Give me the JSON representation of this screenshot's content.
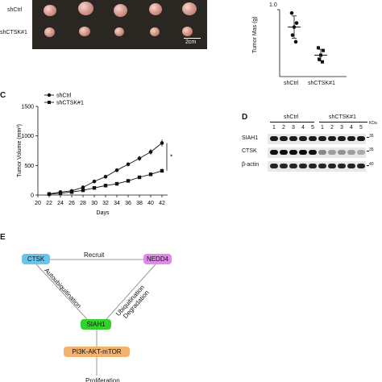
{
  "panelA": {
    "row_labels": [
      "shCtrl",
      "shCTSK#1"
    ],
    "scale_label": "2cm"
  },
  "panelB": {
    "ylabel": "Tumor Mas (g)",
    "ytick_top": "1.0",
    "groups": [
      "shCtrl",
      "shCTSK#1"
    ],
    "chart_data": {
      "type": "scatter",
      "categories": [
        "shCtrl",
        "shCTSK#1"
      ],
      "series": [
        {
          "name": "shCtrl",
          "values": [
            0.95,
            0.8,
            0.74,
            0.62,
            0.52
          ],
          "mean": 0.74
        },
        {
          "name": "shCTSK#1",
          "values": [
            0.43,
            0.39,
            0.32,
            0.26,
            0.22
          ],
          "mean": 0.32
        }
      ],
      "ylabel": "Tumor Mas (g)",
      "ylim": [
        0,
        1.0
      ]
    }
  },
  "panelC": {
    "letter": "C",
    "significance": "*",
    "chart_data": {
      "type": "line",
      "x": [
        22,
        24,
        26,
        28,
        30,
        32,
        34,
        36,
        38,
        40,
        42
      ],
      "series": [
        {
          "name": "shCtrl",
          "marker": "circle",
          "values": [
            20,
            50,
            70,
            130,
            230,
            310,
            420,
            520,
            620,
            730,
            880
          ]
        },
        {
          "name": "shCTSK#1",
          "marker": "square",
          "values": [
            15,
            30,
            50,
            80,
            120,
            160,
            190,
            240,
            300,
            350,
            410
          ]
        }
      ],
      "xlabel": "Days",
      "ylabel": "Tumor Volume (mm³)",
      "xticks": [
        20,
        22,
        24,
        26,
        28,
        30,
        32,
        34,
        36,
        38,
        40,
        42
      ],
      "yticks": [
        0,
        500,
        1000,
        1500
      ],
      "xlim": [
        20,
        43
      ],
      "ylim": [
        0,
        1500
      ],
      "legend": "top-left"
    }
  },
  "panelD": {
    "letter": "D",
    "group_labels": [
      "shCtrl",
      "shCTSK#1"
    ],
    "lanes": [
      "1",
      "2",
      "3",
      "4",
      "5",
      "1",
      "2",
      "3",
      "4",
      "5"
    ],
    "proteins": [
      "SIAH1",
      "CTSK",
      "β-actin"
    ],
    "kda_label": "KDa",
    "markers": [
      "35",
      "35",
      "40"
    ],
    "ctsk_intensity": [
      1,
      1,
      1,
      1,
      1,
      0.45,
      0.35,
      0.4,
      0.35,
      0.3
    ]
  },
  "panelE": {
    "letter": "E",
    "nodes": {
      "ctsk": "CTSK",
      "nedd4": "NEDD4",
      "siah1": "SIAH1",
      "pathway": "PI3K-AKT-mTOR",
      "truncated": "Proliferation"
    },
    "edges": {
      "recruit": "Recruit",
      "auto": "Autoubiquitination",
      "ubiq": "Ubiquitination",
      "degr": "Degradation"
    },
    "colors": {
      "ctsk": "#6ac3ec",
      "nedd4": "#e08ae8",
      "siah1": "#33d12b",
      "pathway": "#f2b16c"
    }
  }
}
